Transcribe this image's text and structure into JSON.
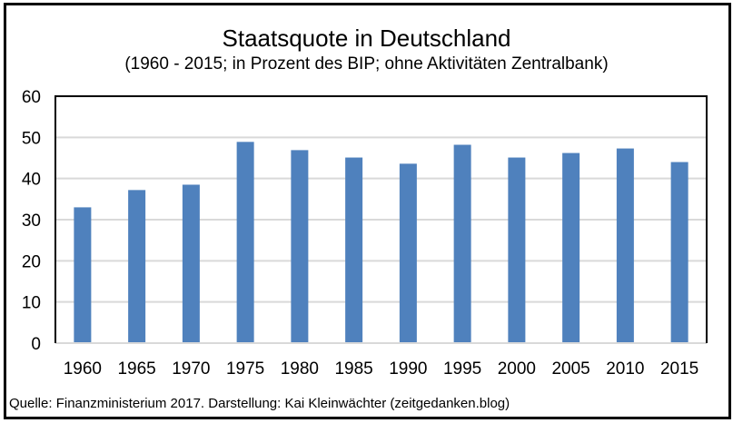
{
  "chart_data": {
    "type": "bar",
    "title": "Staatsquote in Deutschland",
    "subtitle": "(1960 - 2015; in Prozent des BIP; ohne Aktivitäten Zentralbank)",
    "categories": [
      "1960",
      "1965",
      "1970",
      "1975",
      "1980",
      "1985",
      "1990",
      "1995",
      "2000",
      "2005",
      "2010",
      "2015"
    ],
    "values": [
      33.0,
      37.2,
      38.5,
      48.9,
      46.9,
      45.1,
      43.6,
      48.2,
      45.1,
      46.2,
      47.3,
      44.0
    ],
    "ylim": [
      0,
      60
    ],
    "yticks": [
      0,
      10,
      20,
      30,
      40,
      50,
      60
    ],
    "grid": true,
    "bar_color": "#4f81bd",
    "source": "Quelle: Finanzministerium 2017. Darstellung: Kai Kleinwächter (zeitgedanken.blog)"
  }
}
